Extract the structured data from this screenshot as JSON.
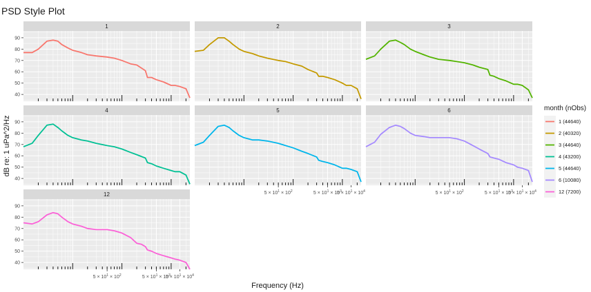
{
  "chart_data": {
    "type": "line",
    "title": "PSD Style Plot",
    "xlabel": "Frequency (Hz)",
    "ylabel": "dB re: 1 uPa^2/Hz",
    "x_scale": "log",
    "x_range": [
      10,
      24000
    ],
    "ylim": [
      34,
      96
    ],
    "y_ticks": [
      "40",
      "50",
      "60",
      "70",
      "80",
      "90"
    ],
    "y_tick_values": [
      40,
      50,
      60,
      70,
      80,
      90
    ],
    "x_tick_labels": [
      {
        "mantissa": "5 × 10",
        "sup": "1",
        "mult": " × 10",
        "exp": "2"
      },
      {
        "mantissa": "5 × 10",
        "sup": "1",
        "mult": " × 10",
        "exp": "3"
      },
      {
        "mantissa": "5 × 10",
        "sup": "1",
        "mult": " × 10",
        "exp": "4"
      }
    ],
    "x_tick_values": [
      500,
      5000,
      15000
    ],
    "legend": {
      "title": "month (nObs)",
      "position": "right",
      "entries": [
        "1 (44640)",
        "2 (40320)",
        "3 (44640)",
        "4 (43200)",
        "5 (44640)",
        "6 (10080)",
        "12 (7200)"
      ]
    },
    "series": [
      {
        "name": "1",
        "color": "#F8766D",
        "x": [
          10,
          15,
          20,
          30,
          40,
          50,
          60,
          80,
          100,
          150,
          200,
          300,
          500,
          700,
          1000,
          1500,
          2000,
          3000,
          3300,
          4000,
          5000,
          7000,
          10000,
          12000,
          15000,
          20000,
          24000
        ],
        "y": [
          77,
          77,
          80,
          87,
          88,
          87,
          84,
          81,
          79,
          77,
          75,
          74,
          73,
          72,
          70,
          67,
          66,
          61,
          55,
          55,
          53,
          51,
          48,
          48,
          47,
          45,
          37
        ]
      },
      {
        "name": "2",
        "color": "#C49A00",
        "x": [
          10,
          15,
          20,
          30,
          40,
          50,
          60,
          80,
          100,
          150,
          200,
          300,
          500,
          700,
          1000,
          1500,
          2000,
          3000,
          3300,
          4000,
          5000,
          7000,
          10000,
          12000,
          15000,
          20000,
          24000
        ],
        "y": [
          78,
          79,
          84,
          90,
          90,
          87,
          84,
          80,
          78,
          76,
          74,
          72,
          70,
          69,
          67,
          65,
          62,
          59,
          56,
          56,
          55,
          53,
          50,
          48,
          48,
          45,
          36
        ]
      },
      {
        "name": "3",
        "color": "#53B400",
        "x": [
          10,
          15,
          20,
          30,
          40,
          50,
          60,
          80,
          100,
          150,
          200,
          300,
          500,
          700,
          1000,
          1500,
          2000,
          3000,
          3300,
          4000,
          5000,
          7000,
          10000,
          12000,
          15000,
          20000,
          24000
        ],
        "y": [
          71,
          74,
          80,
          87,
          88,
          86,
          84,
          80,
          78,
          75,
          73,
          71,
          70,
          69,
          68,
          66,
          64,
          62,
          57,
          56,
          54,
          52,
          49,
          49,
          48,
          44,
          37
        ]
      },
      {
        "name": "4",
        "color": "#00C094",
        "x": [
          10,
          15,
          20,
          30,
          40,
          50,
          60,
          80,
          100,
          150,
          200,
          300,
          500,
          700,
          1000,
          1500,
          2000,
          3000,
          3300,
          4000,
          5000,
          7000,
          10000,
          12000,
          15000,
          20000,
          24000
        ],
        "y": [
          68,
          71,
          78,
          87,
          88,
          85,
          82,
          78,
          76,
          74,
          73,
          71,
          69,
          68,
          66,
          63,
          61,
          58,
          54,
          53,
          51,
          49,
          47,
          46,
          46,
          43,
          35
        ]
      },
      {
        "name": "5",
        "color": "#00B6EB",
        "x": [
          10,
          15,
          20,
          30,
          40,
          50,
          60,
          80,
          100,
          150,
          200,
          300,
          500,
          700,
          1000,
          1500,
          2000,
          3000,
          3300,
          4000,
          5000,
          7000,
          10000,
          12000,
          15000,
          20000,
          24000
        ],
        "y": [
          69,
          72,
          78,
          86,
          87,
          85,
          82,
          78,
          76,
          74,
          74,
          73,
          71,
          69,
          67,
          64,
          62,
          59,
          56,
          55,
          54,
          52,
          49,
          49,
          48,
          46,
          37
        ]
      },
      {
        "name": "6",
        "color": "#A58AFF",
        "x": [
          10,
          15,
          20,
          30,
          40,
          50,
          60,
          80,
          100,
          150,
          200,
          300,
          500,
          700,
          1000,
          1500,
          2000,
          3000,
          3300,
          4000,
          5000,
          7000,
          10000,
          12000,
          15000,
          20000,
          24000
        ],
        "y": [
          68,
          72,
          79,
          85,
          87,
          86,
          84,
          80,
          78,
          77,
          76,
          76,
          76,
          75,
          73,
          69,
          66,
          62,
          59,
          58,
          57,
          54,
          52,
          50,
          49,
          47,
          37
        ]
      },
      {
        "name": "12",
        "color": "#FB61D7",
        "x": [
          10,
          15,
          20,
          30,
          40,
          50,
          60,
          80,
          100,
          150,
          200,
          300,
          500,
          700,
          1000,
          1500,
          2000,
          2500,
          3000,
          3300,
          4000,
          5000,
          7000,
          10000,
          12000,
          15000,
          20000,
          24000
        ],
        "y": [
          75,
          74,
          76,
          82,
          84,
          83,
          80,
          76,
          74,
          72,
          70,
          69,
          69,
          68,
          66,
          62,
          57,
          56,
          54,
          51,
          50,
          48,
          46,
          44,
          43,
          42,
          40,
          34
        ]
      }
    ]
  }
}
